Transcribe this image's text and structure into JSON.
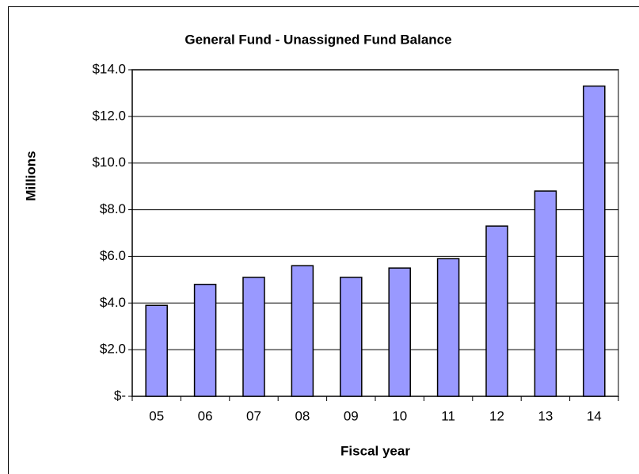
{
  "chart_data": {
    "type": "bar",
    "title": "General Fund - Unassigned Fund Balance",
    "x_label": "Fiscal year",
    "y_label": "Millions",
    "categories": [
      "05",
      "06",
      "07",
      "08",
      "09",
      "10",
      "11",
      "12",
      "13",
      "14"
    ],
    "values": [
      3.9,
      4.8,
      5.1,
      5.6,
      5.1,
      5.5,
      5.9,
      7.3,
      8.8,
      13.3
    ],
    "color": "#9999ff",
    "ylim": [
      0,
      14
    ],
    "yticks": [
      {
        "value": 0,
        "label": "$-"
      },
      {
        "value": 2,
        "label": "$2.0"
      },
      {
        "value": 4,
        "label": "$4.0"
      },
      {
        "value": 6,
        "label": "$6.0"
      },
      {
        "value": 8,
        "label": "$8.0"
      },
      {
        "value": 10,
        "label": "$10.0"
      },
      {
        "value": 12,
        "label": "$12.0"
      },
      {
        "value": 14,
        "label": "$14.0"
      }
    ],
    "grid": true
  }
}
